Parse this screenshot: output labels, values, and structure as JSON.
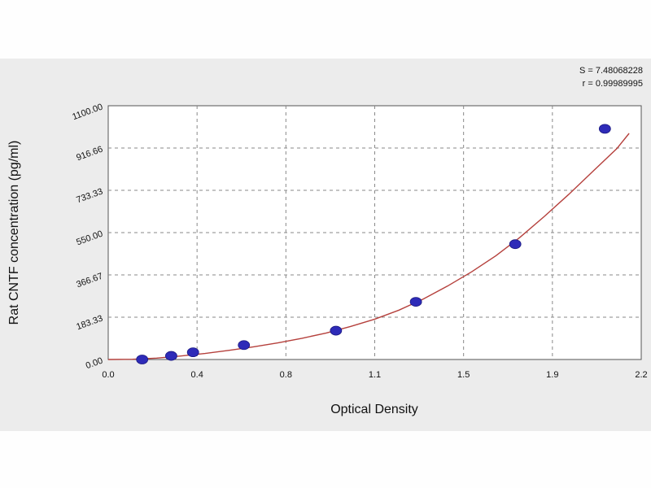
{
  "chart_data": {
    "type": "scatter",
    "title": "",
    "xlabel": "Optical Density",
    "ylabel": "Rat CNTF concentration (pg/ml)",
    "xlim": [
      0.0,
      2.2
    ],
    "ylim": [
      0.0,
      1100.0
    ],
    "x_ticks": [
      "0.0",
      "0.4",
      "0.8",
      "1.1",
      "1.5",
      "1.9",
      "2.2"
    ],
    "y_ticks": [
      "0.00",
      "183.33",
      "366.67",
      "550.00",
      "733.33",
      "916.66",
      "1100.00"
    ],
    "grid": true,
    "stats": [
      "S = 7.48068228",
      "r = 0.99989995"
    ],
    "colors": {
      "curve": "#b5403c",
      "points": "#2e2bb8",
      "panel": "#ececec",
      "grid": "#888888"
    },
    "series": [
      {
        "type": "scatter",
        "x": [
          0.14,
          0.26,
          0.35,
          0.56,
          0.94,
          1.27,
          1.68,
          2.05
        ],
        "y": [
          0,
          15.6,
          31.2,
          62.5,
          125,
          250,
          500,
          1000
        ]
      },
      {
        "type": "line",
        "x": [
          0.0,
          0.1,
          0.2,
          0.3,
          0.4,
          0.5,
          0.6,
          0.7,
          0.8,
          0.9,
          1.0,
          1.1,
          1.2,
          1.3,
          1.4,
          1.5,
          1.6,
          1.7,
          1.8,
          1.9,
          2.0,
          2.1,
          2.15
        ],
        "y": [
          0,
          1,
          6,
          15,
          26,
          40,
          55,
          72,
          92,
          115,
          143,
          175,
          214,
          262,
          318,
          380,
          450,
          530,
          620,
          715,
          815,
          915,
          980
        ]
      }
    ]
  }
}
